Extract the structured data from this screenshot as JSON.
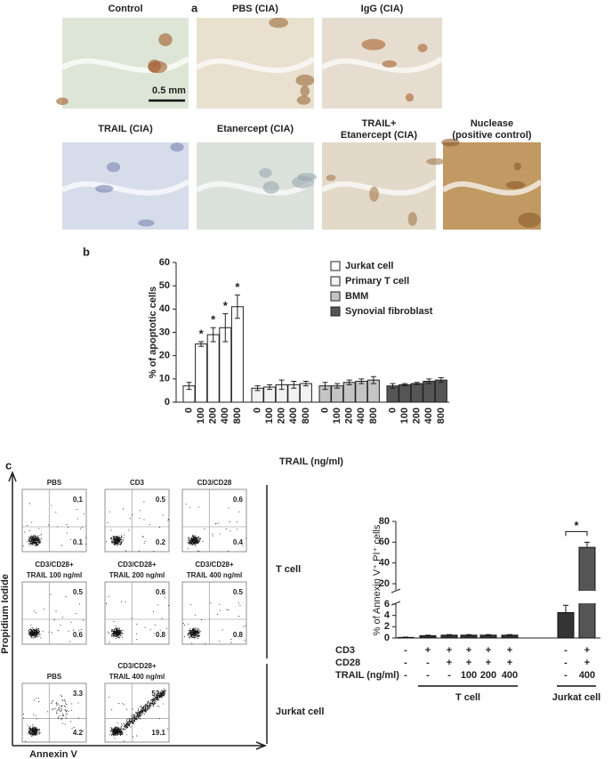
{
  "panel_a": {
    "label": "a",
    "scale_bar": "0.5 mm",
    "images": [
      {
        "title": [
          "Control"
        ]
      },
      {
        "title": [
          "PBS (CIA)"
        ]
      },
      {
        "title": [
          "IgG (CIA)"
        ]
      },
      {
        "title": [
          "TRAIL (CIA)"
        ]
      },
      {
        "title": [
          "Etanercept (CIA)"
        ]
      },
      {
        "title": [
          "TRAIL+",
          "Etanercept (CIA)"
        ]
      },
      {
        "title": [
          "Nuclease",
          "(positive control)"
        ]
      }
    ]
  },
  "panel_b": {
    "label": "b"
  },
  "chart_data": [
    {
      "type": "bar",
      "y_label": "% of apoptotic cells",
      "x_label": "TRAIL (ng/ml)",
      "categories": [
        "0",
        "100",
        "200",
        "400",
        "800"
      ],
      "ylim": [
        0,
        60
      ],
      "yticks": [
        0,
        10,
        20,
        30,
        40,
        50,
        60
      ],
      "series": [
        {
          "name": "Jurkat cell",
          "color": "#ffffff",
          "values": [
            7,
            25,
            29,
            32,
            41
          ],
          "errors": [
            1.5,
            1,
            3,
            6,
            5
          ],
          "significance": [
            null,
            "*",
            "*",
            "*",
            "*"
          ]
        },
        {
          "name": "Primary T cell",
          "color": "#f2f2f2",
          "values": [
            6,
            6.5,
            7.5,
            7.5,
            8
          ],
          "errors": [
            1,
            1,
            2,
            1.5,
            1
          ]
        },
        {
          "name": "BMM",
          "color": "#c4c4c4",
          "values": [
            7,
            7,
            8.5,
            9,
            9.5
          ],
          "errors": [
            1.5,
            1,
            1,
            1,
            1.5
          ]
        },
        {
          "name": "Synovial fibroblast",
          "color": "#555555",
          "values": [
            7,
            7.5,
            8,
            9,
            9.5
          ],
          "errors": [
            1,
            0.5,
            0.5,
            1,
            1
          ]
        }
      ]
    },
    {
      "type": "bar",
      "y_label": "% of Annexin V⁺ PI⁺ cells",
      "values": [
        0.1,
        0.4,
        0.5,
        0.5,
        0.5,
        0.5,
        4.5,
        55
      ],
      "errors": [
        0.05,
        0.1,
        0.1,
        0.1,
        0.1,
        0.1,
        1.3,
        5
      ],
      "colors": [
        "#333333",
        "#333333",
        "#333333",
        "#333333",
        "#333333",
        "#333333",
        "#333333",
        "#555555"
      ],
      "ylim": [
        0,
        80
      ],
      "axis_break": [
        6,
        14
      ],
      "yticks": [
        0,
        2,
        4,
        6,
        20,
        40,
        60,
        80
      ],
      "significance": "*",
      "conditions": [
        {
          "label": "CD3",
          "values": [
            "-",
            "+",
            "+",
            "+",
            "+",
            "+",
            "-",
            "+"
          ]
        },
        {
          "label": "CD28",
          "values": [
            "-",
            "-",
            "+",
            "+",
            "+",
            "+",
            "-",
            "+"
          ]
        },
        {
          "label": "TRAIL (ng/ml)",
          "values": [
            "-",
            "-",
            "-",
            "100",
            "200",
            "400",
            "-",
            "400"
          ]
        }
      ],
      "groups": [
        "T cell",
        "Jurkat cell"
      ]
    }
  ],
  "panel_c": {
    "label": "c",
    "y_label": "Propidium Iodide",
    "x_label": "Annexin V",
    "groups": [
      "T cell",
      "Jurkat cell"
    ],
    "plots": [
      {
        "title": [
          "PBS"
        ],
        "upper_right": 0.1,
        "lower_right": 0.1
      },
      {
        "title": [
          "CD3"
        ],
        "upper_right": 0.5,
        "lower_right": 0.2
      },
      {
        "title": [
          "CD3/CD28"
        ],
        "upper_right": 0.6,
        "lower_right": 0.4
      },
      {
        "title": [
          "CD3/CD28+",
          "TRAIL 100 ng/ml"
        ],
        "upper_right": 0.5,
        "lower_right": 0.6
      },
      {
        "title": [
          "CD3/CD28+",
          "TRAIL 200 ng/ml"
        ],
        "upper_right": 0.6,
        "lower_right": 0.8
      },
      {
        "title": [
          "CD3/CD28+",
          "TRAIL 400 ng/ml"
        ],
        "upper_right": 0.5,
        "lower_right": 0.8
      },
      {
        "title": [
          "PBS"
        ],
        "upper_right": 3.3,
        "lower_right": 4.2
      },
      {
        "title": [
          "CD3/CD28+",
          "TRAIL 400 ng/ml"
        ],
        "upper_right": 52.9,
        "lower_right": 19.1
      }
    ]
  }
}
